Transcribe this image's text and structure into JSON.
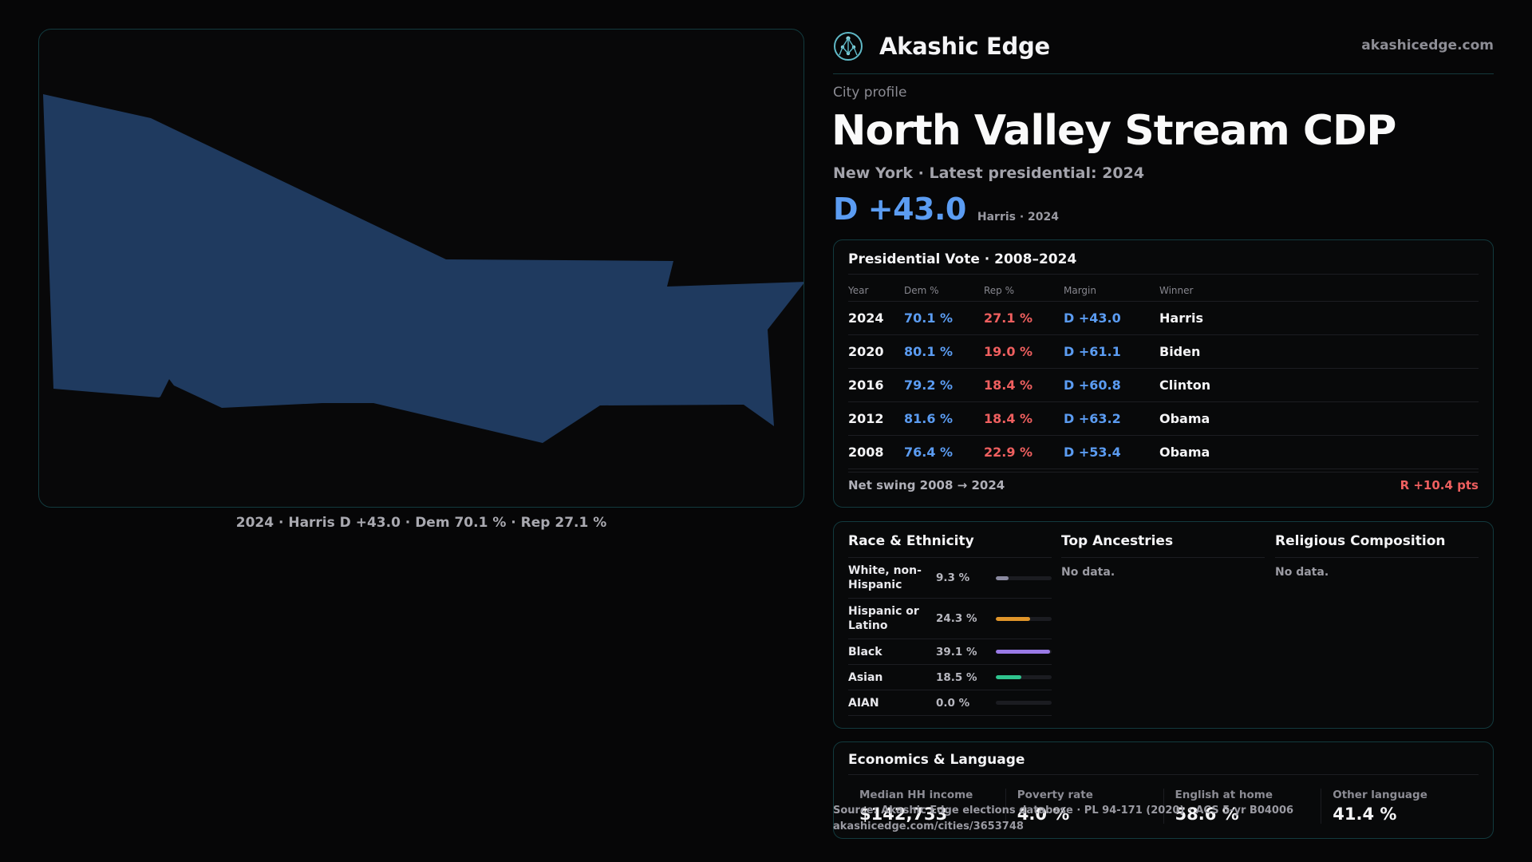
{
  "brand": {
    "name": "Akashic Edge",
    "url": "akashicedge.com",
    "logo_icon": "network-tree-icon"
  },
  "header": {
    "kicker": "City profile",
    "title": "North Valley Stream CDP",
    "subtitle": "New York  · Latest presidential: 2024",
    "margin": "D +43.0",
    "margin_note": "Harris · 2024"
  },
  "map": {
    "caption": "2024 · Harris D +43.0 · Dem 70.1 % · Rep 27.1 %",
    "fill_color": "#1f3a5f"
  },
  "presidential": {
    "title": "Presidential Vote · 2008–2024",
    "columns": [
      "Year",
      "Dem %",
      "Rep %",
      "Margin",
      "Winner"
    ],
    "rows": [
      {
        "year": "2024",
        "dem": "70.1 %",
        "rep": "27.1 %",
        "margin": "D +43.0",
        "winner": "Harris"
      },
      {
        "year": "2020",
        "dem": "80.1 %",
        "rep": "19.0 %",
        "margin": "D +61.1",
        "winner": "Biden"
      },
      {
        "year": "2016",
        "dem": "79.2 %",
        "rep": "18.4 %",
        "margin": "D +60.8",
        "winner": "Clinton"
      },
      {
        "year": "2012",
        "dem": "81.6 %",
        "rep": "18.4 %",
        "margin": "D +63.2",
        "winner": "Obama"
      },
      {
        "year": "2008",
        "dem": "76.4 %",
        "rep": "22.9 %",
        "margin": "D +53.4",
        "winner": "Obama"
      }
    ],
    "swing_label": "Net swing 2008 → 2024",
    "swing_value": "R +10.4 pts"
  },
  "race": {
    "title": "Race & Ethnicity",
    "rows": [
      {
        "name": "White, non-Hispanic",
        "pct": "9.3 %",
        "value": 0.093,
        "color": "#8a8aa0"
      },
      {
        "name": "Hispanic or Latino",
        "pct": "24.3 %",
        "value": 0.243,
        "color": "#e0952a"
      },
      {
        "name": "Black",
        "pct": "39.1 %",
        "value": 0.391,
        "color": "#9a7ae6"
      },
      {
        "name": "Asian",
        "pct": "18.5 %",
        "value": 0.185,
        "color": "#2fc48e"
      },
      {
        "name": "AIAN",
        "pct": "0.0 %",
        "value": 0.0,
        "color": "#555560"
      }
    ]
  },
  "ancestries": {
    "title": "Top Ancestries",
    "empty": "No data."
  },
  "religion": {
    "title": "Religious Composition",
    "empty": "No data."
  },
  "economics": {
    "title": "Economics & Language",
    "stats": [
      {
        "label": "Median HH income",
        "value": "$142,733"
      },
      {
        "label": "Poverty rate",
        "value": "4.0 %"
      },
      {
        "label": "English at home",
        "value": "58.6 %"
      },
      {
        "label": "Other language",
        "value": "41.4 %"
      }
    ]
  },
  "source": {
    "line1": "Source: Akashic Edge elections database · PL 94-171 (2020) · ACS 5-yr B04006",
    "line2": "akashicedge.com/cities/3653748"
  }
}
